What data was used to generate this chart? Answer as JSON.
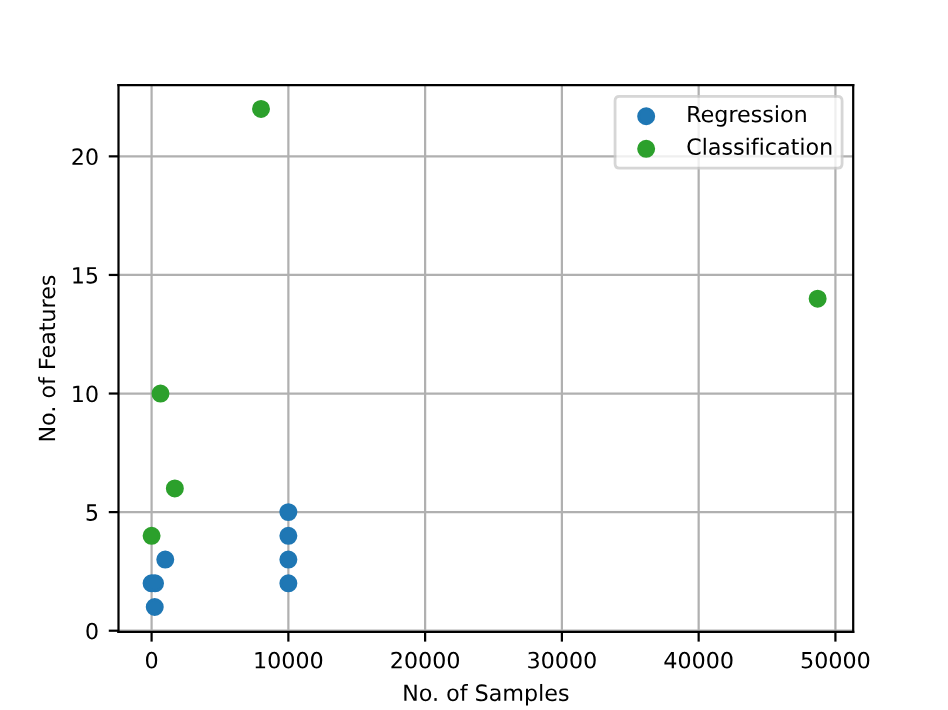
{
  "chart_data": {
    "type": "scatter",
    "xlabel": "No. of Samples",
    "ylabel": "No. of Features",
    "series": [
      {
        "name": "Regression",
        "color": "#1f77b4",
        "x": [
          230,
          0,
          250,
          1000,
          10000,
          10000,
          10000,
          10000
        ],
        "values": [
          1,
          2,
          2,
          3,
          2,
          3,
          4,
          5
        ]
      },
      {
        "name": "Classification",
        "color": "#2ca02c",
        "x": [
          0,
          1700,
          650,
          8000,
          48700
        ],
        "values": [
          4,
          6,
          10,
          22,
          14
        ]
      }
    ],
    "xlim": [
      -2420,
      51300
    ],
    "ylim": [
      -0.05,
      23.0
    ],
    "xticks": [
      0,
      10000,
      20000,
      30000,
      40000,
      50000
    ],
    "yticks": [
      0,
      5,
      10,
      15,
      20
    ],
    "grid": true,
    "legend": "top right",
    "marker": "circle"
  }
}
